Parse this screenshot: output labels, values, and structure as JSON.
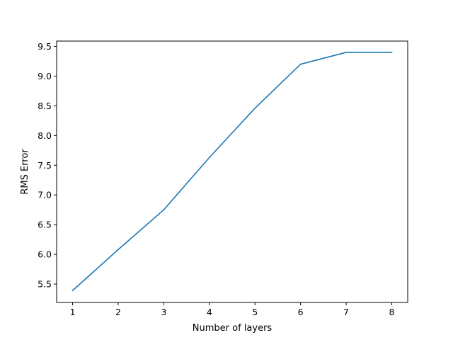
{
  "chart_data": {
    "type": "line",
    "title": "",
    "xlabel": "Number of layers",
    "ylabel": "RMS Error",
    "xlim": [
      0.65,
      8.35
    ],
    "ylim": [
      5.19,
      9.59
    ],
    "xticks": [
      1,
      2,
      3,
      4,
      5,
      6,
      7,
      8
    ],
    "xtick_labels": [
      "1",
      "2",
      "3",
      "4",
      "5",
      "6",
      "7",
      "8"
    ],
    "yticks": [
      5.5,
      6.0,
      6.5,
      7.0,
      7.5,
      8.0,
      8.5,
      9.0,
      9.5
    ],
    "ytick_labels": [
      "5.5",
      "6.0",
      "6.5",
      "7.0",
      "7.5",
      "8.0",
      "8.5",
      "9.0",
      "9.5"
    ],
    "grid": false,
    "legend": "none",
    "series": [
      {
        "color": "#1f77b4",
        "x": [
          1,
          2,
          3,
          4,
          5,
          6,
          7,
          8
        ],
        "y": [
          5.39,
          6.08,
          6.75,
          7.63,
          8.46,
          9.2,
          9.4,
          9.4
        ]
      }
    ]
  }
}
